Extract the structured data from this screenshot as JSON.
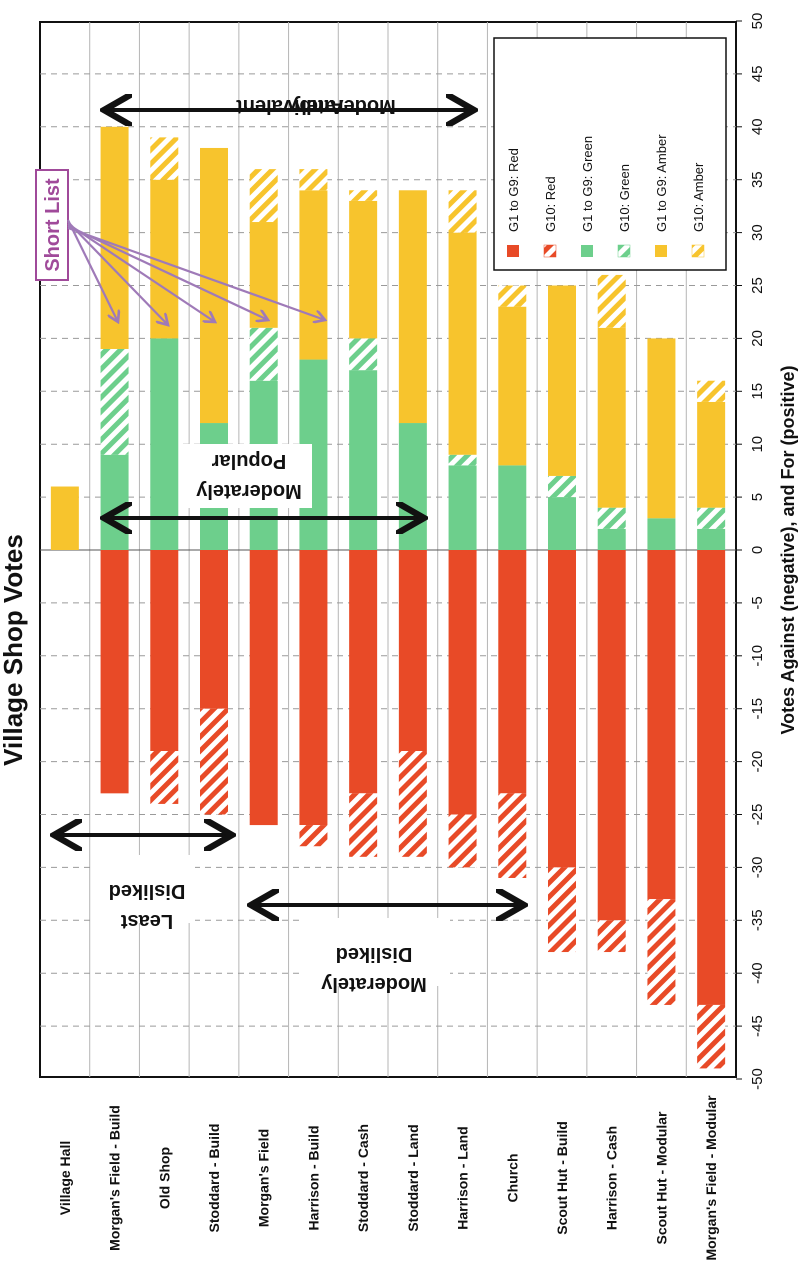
{
  "chart_data": {
    "type": "bar",
    "orientation": "horizontal-stacked-diverging",
    "title": "Village Shop Votes",
    "xlabel": "Votes Against (negative), and For (positive)",
    "xlim": [
      -50,
      50
    ],
    "x_ticks": [
      -50,
      -45,
      -40,
      -35,
      -30,
      -25,
      -20,
      -15,
      -10,
      -5,
      0,
      5,
      10,
      15,
      20,
      25,
      30,
      35,
      40,
      45,
      50
    ],
    "categories": [
      "Village Hall",
      "Morgan's Field - Build",
      "Old Shop",
      "Stoddard - Build",
      "Morgan's Field",
      "Harrison - Build",
      "Stoddard - Cash",
      "Stoddard - Land",
      "Harrison - Land",
      "Church",
      "Scout Hut - Build",
      "Harrison - Cash",
      "Scout Hut - Modular",
      "Morgan's Field - Modular"
    ],
    "series": [
      {
        "name": "G1 to G9: Red",
        "color": "#e84a27",
        "hatched": false,
        "values": [
          0,
          -23,
          -19,
          -15,
          -26,
          -26,
          -23,
          -19,
          -25,
          -23,
          -30,
          -35,
          -33,
          -43
        ]
      },
      {
        "name": "G10: Red",
        "color": "#e84a27",
        "hatched": true,
        "values": [
          0,
          0,
          -5,
          -10,
          0,
          -2,
          -6,
          -10,
          -5,
          -8,
          -8,
          -3,
          -10,
          -6
        ]
      },
      {
        "name": "G1 to G9: Green",
        "color": "#6dcf8c",
        "hatched": false,
        "values": [
          0,
          9,
          20,
          12,
          16,
          18,
          17,
          12,
          8,
          8,
          5,
          2,
          3,
          2
        ]
      },
      {
        "name": "G10: Green",
        "color": "#6dcf8c",
        "hatched": true,
        "values": [
          0,
          10,
          0,
          0,
          5,
          0,
          3,
          0,
          1,
          0,
          2,
          2,
          0,
          2
        ]
      },
      {
        "name": "G1 to G9: Amber",
        "color": "#f7c42d",
        "hatched": false,
        "values": [
          6,
          21,
          15,
          26,
          10,
          16,
          13,
          22,
          21,
          15,
          18,
          17,
          17,
          10
        ]
      },
      {
        "name": "G10: Amber",
        "color": "#f7c42d",
        "hatched": true,
        "values": [
          0,
          0,
          4,
          0,
          5,
          2,
          1,
          0,
          4,
          2,
          0,
          5,
          0,
          2
        ]
      }
    ],
    "grid": true,
    "legend_position": "top-right",
    "annotations": {
      "short_list": "Short List",
      "least_disliked": [
        "Least",
        "Disliked"
      ],
      "moderately_disliked": [
        "Moderately",
        "Disliked"
      ],
      "moderately_popular": [
        "Moderately",
        "Popular"
      ],
      "moderately_ambivalent": [
        "Moderately",
        "Ambivalent"
      ]
    }
  },
  "colors": {
    "red": "#e84a27",
    "green": "#6dcf8c",
    "amber": "#f7c42d",
    "short_list": "#a04a9a",
    "arrow": "#9f7ab8"
  }
}
